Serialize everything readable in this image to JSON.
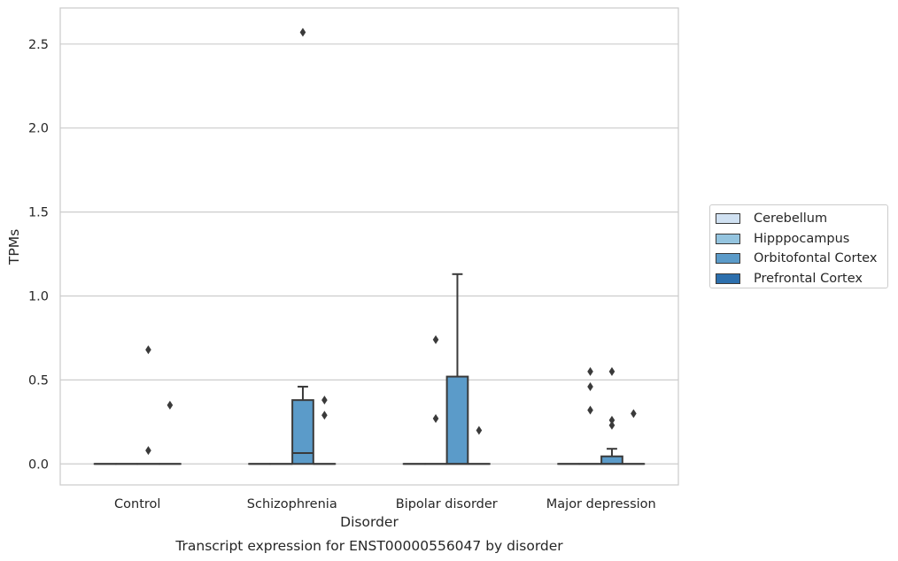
{
  "chart_data": {
    "type": "box",
    "title": "Transcript expression for ENST00000556047 by disorder",
    "xlabel": "Disorder",
    "ylabel": "TPMs",
    "ylim": [
      -0.125,
      2.715
    ],
    "yticks": [
      "0.0",
      "0.5",
      "1.0",
      "1.5",
      "2.0",
      "2.5"
    ],
    "ytick_values": [
      0,
      0.5,
      1.0,
      1.5,
      2.0,
      2.5
    ],
    "categories": [
      "Control",
      "Schizophrenia",
      "Bipolar disorder",
      "Major depression"
    ],
    "grid": "horizontal",
    "legend_position": "right",
    "series": [
      {
        "name": "Cerebellum",
        "color": "#d0e1f2",
        "boxes": [
          {
            "category": "Control",
            "q1": 0,
            "median": 0,
            "q3": 0,
            "whislo": 0,
            "whishi": 0,
            "fliers": []
          },
          {
            "category": "Schizophrenia",
            "q1": 0,
            "median": 0,
            "q3": 0,
            "whislo": 0,
            "whishi": 0,
            "fliers": []
          },
          {
            "category": "Bipolar disorder",
            "q1": 0,
            "median": 0,
            "q3": 0,
            "whislo": 0,
            "whishi": 0,
            "fliers": []
          },
          {
            "category": "Major depression",
            "q1": 0,
            "median": 0,
            "q3": 0,
            "whislo": 0,
            "whishi": 0,
            "fliers": []
          }
        ]
      },
      {
        "name": "Hipppocampus",
        "color": "#94c4df",
        "boxes": [
          {
            "category": "Control",
            "q1": 0,
            "median": 0,
            "q3": 0,
            "whislo": 0,
            "whishi": 0,
            "fliers": []
          },
          {
            "category": "Schizophrenia",
            "q1": 0,
            "median": 0,
            "q3": 0,
            "whislo": 0,
            "whishi": 0,
            "fliers": []
          },
          {
            "category": "Bipolar disorder",
            "q1": 0,
            "median": 0,
            "q3": 0,
            "whislo": 0,
            "whishi": 0,
            "fliers": [
              0.74,
              0.27
            ]
          },
          {
            "category": "Major depression",
            "q1": 0,
            "median": 0,
            "q3": 0,
            "whislo": 0,
            "whishi": 0,
            "fliers": [
              0.55,
              0.46,
              0.32
            ]
          }
        ]
      },
      {
        "name": "Orbitofontal Cortex",
        "color": "#5b9bc9",
        "boxes": [
          {
            "category": "Control",
            "q1": 0,
            "median": 0,
            "q3": 0,
            "whislo": 0,
            "whishi": 0,
            "fliers": [
              0.68,
              0.08
            ]
          },
          {
            "category": "Schizophrenia",
            "q1": 0,
            "median": 0.065,
            "q3": 0.38,
            "whislo": 0,
            "whishi": 0.46,
            "fliers": [
              2.57
            ]
          },
          {
            "category": "Bipolar disorder",
            "q1": 0,
            "median": 0,
            "q3": 0.52,
            "whislo": 0,
            "whishi": 1.13,
            "fliers": []
          },
          {
            "category": "Major depression",
            "q1": 0,
            "median": 0,
            "q3": 0.045,
            "whislo": 0,
            "whishi": 0.09,
            "fliers": [
              0.55,
              0.26,
              0.23
            ]
          }
        ]
      },
      {
        "name": "Prefrontal Cortex",
        "color": "#2c6fad",
        "boxes": [
          {
            "category": "Control",
            "q1": 0,
            "median": 0,
            "q3": 0,
            "whislo": 0,
            "whishi": 0,
            "fliers": [
              0.35
            ]
          },
          {
            "category": "Schizophrenia",
            "q1": 0,
            "median": 0,
            "q3": 0,
            "whislo": 0,
            "whishi": 0,
            "fliers": [
              0.38,
              0.29
            ]
          },
          {
            "category": "Bipolar disorder",
            "q1": 0,
            "median": 0,
            "q3": 0,
            "whislo": 0,
            "whishi": 0,
            "fliers": [
              0.2
            ]
          },
          {
            "category": "Major depression",
            "q1": 0,
            "median": 0,
            "q3": 0,
            "whislo": 0,
            "whishi": 0,
            "fliers": [
              0.3
            ]
          }
        ]
      }
    ]
  }
}
